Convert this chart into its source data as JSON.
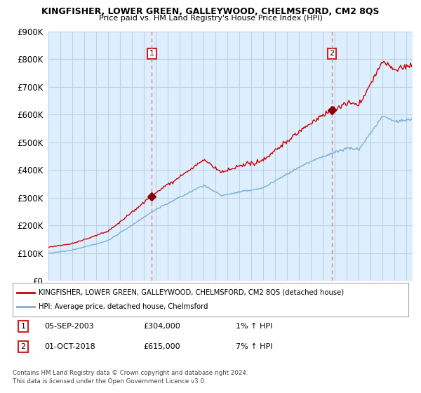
{
  "title": "KINGFISHER, LOWER GREEN, GALLEYWOOD, CHELMSFORD, CM2 8QS",
  "subtitle": "Price paid vs. HM Land Registry's House Price Index (HPI)",
  "legend_line1": "KINGFISHER, LOWER GREEN, GALLEYWOOD, CHELMSFORD, CM2 8QS (detached house)",
  "legend_line2": "HPI: Average price, detached house, Chelmsford",
  "sale1_date": "05-SEP-2003",
  "sale1_price": 304000,
  "sale1_pct": "1%",
  "sale2_date": "01-OCT-2018",
  "sale2_price": 615000,
  "sale2_pct": "7%",
  "footer1": "Contains HM Land Registry data © Crown copyright and database right 2024.",
  "footer2": "This data is licensed under the Open Government Licence v3.0.",
  "hpi_color": "#7bafd4",
  "price_color": "#cc0000",
  "sale_marker_color": "#8b0000",
  "vline_color": "#e88080",
  "bg_color": "#ffffff",
  "plot_bg_color": "#ddeeff",
  "grid_color": "#c0d0e0",
  "ylim": [
    0,
    900000
  ],
  "xlim_start": 1995.0,
  "xlim_end": 2025.5
}
